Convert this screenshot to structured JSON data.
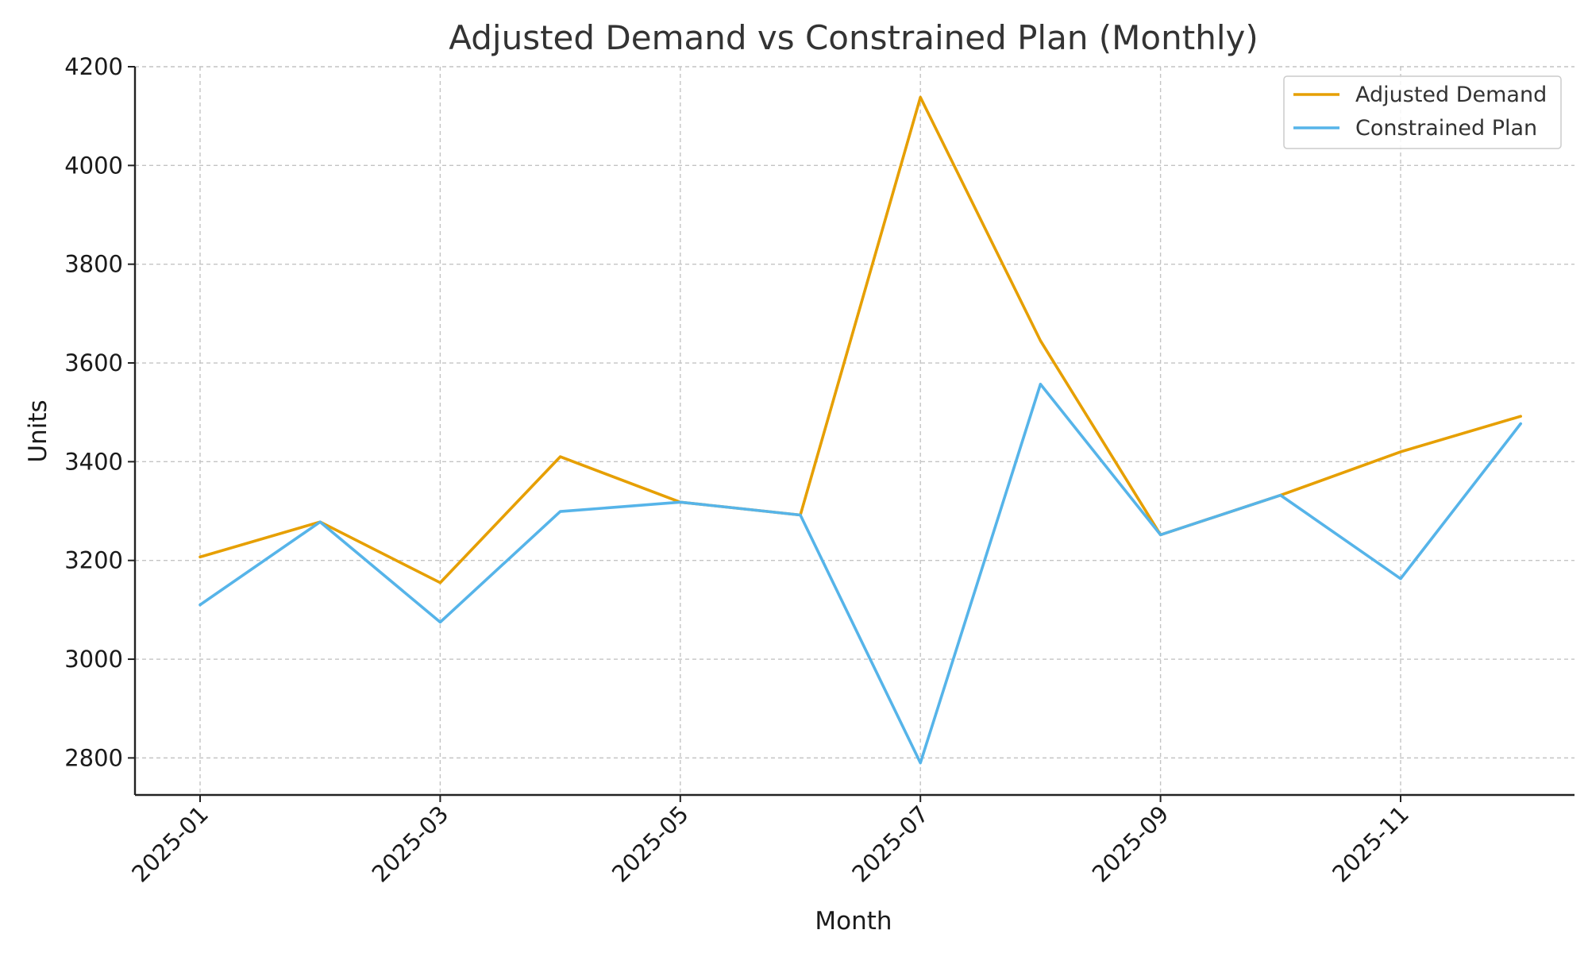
{
  "chart_data": {
    "type": "line",
    "title": "Adjusted Demand vs Constrained Plan (Monthly)",
    "xlabel": "Month",
    "ylabel": "Units",
    "x": [
      "2025-01",
      "2025-02",
      "2025-03",
      "2025-04",
      "2025-05",
      "2025-06",
      "2025-07",
      "2025-08",
      "2025-09",
      "2025-10",
      "2025-11",
      "2025-12"
    ],
    "x_ticks": [
      "2025-01",
      "2025-03",
      "2025-05",
      "2025-07",
      "2025-09",
      "2025-11"
    ],
    "y_ticks": [
      2800,
      3000,
      3200,
      3400,
      3600,
      3800,
      4000,
      4200
    ],
    "ylim": [
      2725,
      4200
    ],
    "grid": true,
    "legend_position": "top-right",
    "series": [
      {
        "name": "Adjusted Demand",
        "color": "#E69F00",
        "values": [
          3207,
          3278,
          3155,
          3410,
          3318,
          3292,
          4138,
          3645,
          3252,
          3332,
          3420,
          3492
        ]
      },
      {
        "name": "Constrained Plan",
        "color": "#56B4E9",
        "values": [
          3110,
          3278,
          3075,
          3299,
          3318,
          3292,
          2790,
          3557,
          3252,
          3332,
          3163,
          3477
        ]
      }
    ]
  }
}
